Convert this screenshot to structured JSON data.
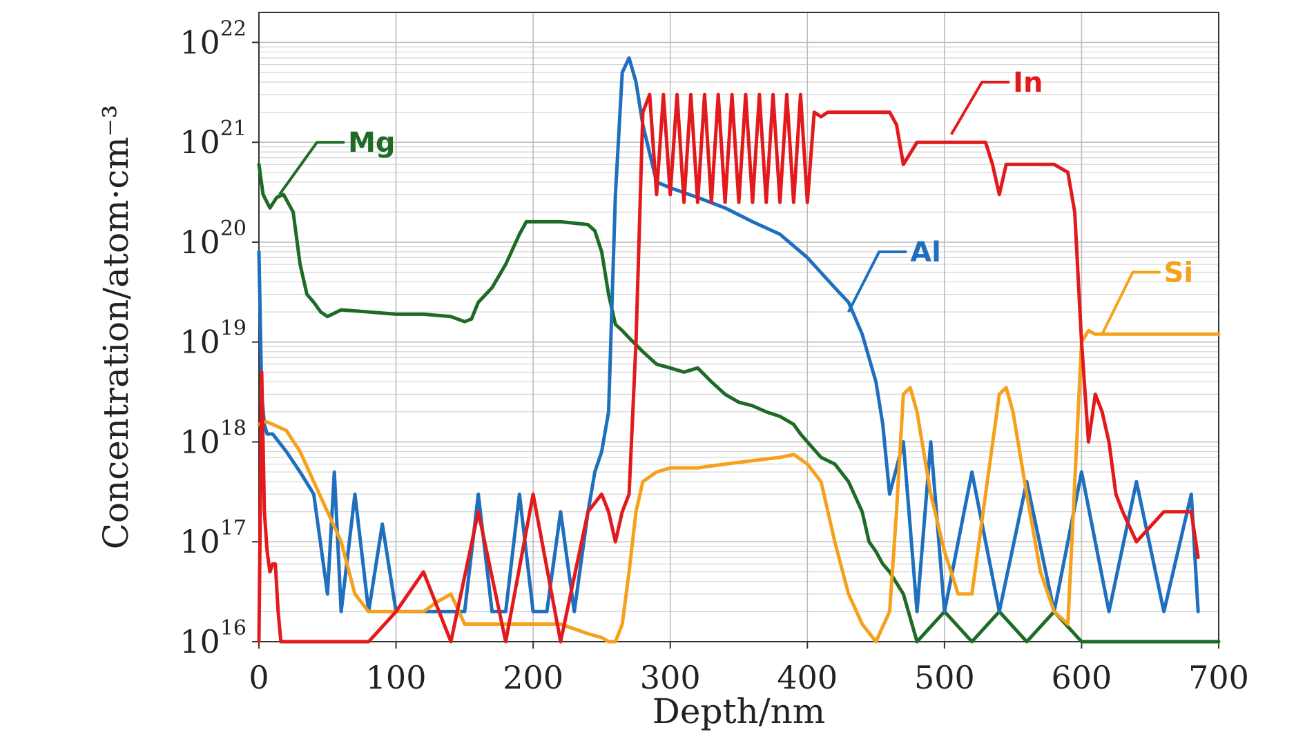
{
  "chart_data": {
    "type": "line",
    "xlabel": "Depth/nm",
    "ylabel": "Concentration/atom·cm⁻³",
    "xlim": [
      0,
      700
    ],
    "ylim": [
      1e+16,
      1e+22
    ],
    "y_scale": "log",
    "grid": true,
    "x_ticks": [
      "0",
      "100",
      "200",
      "300",
      "400",
      "500",
      "600",
      "700"
    ],
    "y_ticks": [
      {
        "base": "10",
        "exp": "16"
      },
      {
        "base": "10",
        "exp": "17"
      },
      {
        "base": "10",
        "exp": "18"
      },
      {
        "base": "10",
        "exp": "19"
      },
      {
        "base": "10",
        "exp": "20"
      },
      {
        "base": "10",
        "exp": "21"
      },
      {
        "base": "10",
        "exp": "22"
      }
    ],
    "series": [
      {
        "name": "Mg",
        "color": "#1e6b26",
        "label_anchor": [
          15,
          3e+20
        ],
        "label_pos": [
          65,
          1e+21
        ],
        "x": [
          0,
          3,
          8,
          13,
          18,
          25,
          30,
          35,
          40,
          45,
          50,
          60,
          80,
          100,
          120,
          140,
          150,
          155,
          160,
          170,
          180,
          190,
          195,
          200,
          220,
          240,
          245,
          250,
          255,
          260,
          265,
          270,
          280,
          290,
          300,
          310,
          320,
          330,
          340,
          350,
          360,
          370,
          380,
          390,
          395,
          400,
          410,
          420,
          430,
          440,
          445,
          450,
          455,
          460,
          470,
          480,
          500,
          520,
          540,
          560,
          580,
          600,
          620,
          640,
          660,
          680,
          700
        ],
        "y": [
          6e+20,
          3e+20,
          2.2e+20,
          2.8e+20,
          3e+20,
          2e+20,
          6e+19,
          3e+19,
          2.5e+19,
          2e+19,
          1.8e+19,
          2.1e+19,
          2e+19,
          1.9e+19,
          1.9e+19,
          1.8e+19,
          1.6e+19,
          1.7e+19,
          2.5e+19,
          3.5e+19,
          6e+19,
          1.2e+20,
          1.6e+20,
          1.6e+20,
          1.6e+20,
          1.5e+20,
          1.3e+20,
          8e+19,
          3e+19,
          1.5e+19,
          1.3e+19,
          1.1e+19,
          8e+18,
          6e+18,
          5.5e+18,
          5e+18,
          5.5e+18,
          4e+18,
          3e+18,
          2.5e+18,
          2.3e+18,
          2e+18,
          1.8e+18,
          1.5e+18,
          1.2e+18,
          1e+18,
          7e+17,
          6e+17,
          4e+17,
          2e+17,
          1e+17,
          8e+16,
          6e+16,
          5e+16,
          3e+16,
          1e+16,
          2e+16,
          1e+16,
          2e+16,
          1e+16,
          2e+16,
          1e+16,
          1e+16,
          1e+16,
          1e+16,
          1e+16,
          1e+16
        ]
      },
      {
        "name": "In",
        "color": "#e31a1c",
        "label_anchor": [
          505,
          1.2e+21
        ],
        "label_pos": [
          550,
          4e+21
        ],
        "x": [
          0,
          2,
          4,
          6,
          8,
          10,
          12,
          14,
          16,
          20,
          40,
          80,
          100,
          120,
          140,
          160,
          180,
          200,
          220,
          240,
          250,
          255,
          260,
          265,
          270,
          275,
          280,
          285,
          290,
          295,
          300,
          305,
          310,
          315,
          320,
          325,
          330,
          335,
          340,
          345,
          350,
          355,
          360,
          365,
          370,
          375,
          380,
          385,
          390,
          395,
          400,
          405,
          410,
          415,
          420,
          440,
          460,
          465,
          470,
          480,
          500,
          520,
          530,
          535,
          540,
          545,
          550,
          580,
          590,
          595,
          600,
          605,
          610,
          615,
          620,
          625,
          630,
          640,
          660,
          680,
          685
        ],
        "y": [
          1e+16,
          5e+18,
          2e+17,
          8e+16,
          5e+16,
          6e+16,
          6e+16,
          2e+16,
          1e+16,
          1e+16,
          1e+16,
          1e+16,
          2e+16,
          5e+16,
          1e+16,
          2e+17,
          1e+16,
          3e+17,
          1e+16,
          2e+17,
          3e+17,
          2e+17,
          1e+17,
          2e+17,
          3e+17,
          1e+19,
          2e+21,
          3e+21,
          3e+20,
          3e+21,
          3e+20,
          3e+21,
          2.5e+20,
          3e+21,
          2.5e+20,
          3e+21,
          2.5e+20,
          3e+21,
          2.5e+20,
          3e+21,
          2.5e+20,
          3e+21,
          2.5e+20,
          3e+21,
          2.5e+20,
          3e+21,
          2.5e+20,
          3e+21,
          2.5e+20,
          3e+21,
          2.5e+20,
          2e+21,
          1.8e+21,
          2e+21,
          2e+21,
          2e+21,
          2e+21,
          1.5e+21,
          6e+20,
          1e+21,
          1e+21,
          1e+21,
          1e+21,
          6e+20,
          3e+20,
          6e+20,
          6e+20,
          6e+20,
          5e+20,
          2e+20,
          1e+19,
          1e+18,
          3e+18,
          2e+18,
          1e+18,
          3e+17,
          2e+17,
          1e+17,
          2e+17,
          2e+17,
          7e+16
        ]
      },
      {
        "name": "Al",
        "color": "#1f6fbf",
        "label_anchor": [
          430,
          2e+19
        ],
        "label_pos": [
          475,
          8e+19
        ],
        "x": [
          0,
          2,
          4,
          6,
          10,
          20,
          30,
          40,
          50,
          55,
          60,
          70,
          80,
          90,
          100,
          110,
          120,
          130,
          140,
          150,
          160,
          170,
          180,
          190,
          200,
          210,
          220,
          230,
          240,
          245,
          250,
          255,
          260,
          265,
          270,
          275,
          280,
          290,
          300,
          320,
          340,
          360,
          380,
          400,
          420,
          430,
          440,
          450,
          455,
          460,
          470,
          480,
          490,
          500,
          520,
          540,
          560,
          580,
          600,
          620,
          640,
          660,
          680,
          685
        ],
        "y": [
          8e+19,
          3e+18,
          1.5e+18,
          1.2e+18,
          1.2e+18,
          8e+17,
          5e+17,
          3e+17,
          3e+16,
          5e+17,
          2e+16,
          3e+17,
          2e+16,
          1.5e+17,
          2e+16,
          2e+16,
          2e+16,
          2e+16,
          2e+16,
          2e+16,
          3e+17,
          2e+16,
          2e+16,
          3e+17,
          2e+16,
          2e+16,
          2e+17,
          2e+16,
          2e+17,
          5e+17,
          8e+17,
          2e+18,
          3e+20,
          5e+21,
          7e+21,
          4e+21,
          1.5e+21,
          4e+20,
          3.5e+20,
          2.8e+20,
          2.2e+20,
          1.6e+20,
          1.2e+20,
          7e+19,
          3.5e+19,
          2.5e+19,
          1.2e+19,
          4e+18,
          1.5e+18,
          3e+17,
          1e+18,
          2e+16,
          1e+18,
          2e+16,
          5e+17,
          2e+16,
          4e+17,
          2e+16,
          5e+17,
          2e+16,
          4e+17,
          2e+16,
          3e+17,
          2e+16
        ]
      },
      {
        "name": "Si",
        "color": "#f5a11b",
        "label_anchor": [
          615,
          1.2e+19
        ],
        "label_pos": [
          660,
          5e+19
        ],
        "x": [
          0,
          5,
          10,
          20,
          30,
          40,
          50,
          60,
          70,
          80,
          90,
          100,
          110,
          120,
          130,
          140,
          150,
          160,
          180,
          200,
          220,
          240,
          250,
          255,
          260,
          265,
          270,
          275,
          280,
          290,
          300,
          320,
          340,
          360,
          380,
          390,
          400,
          410,
          420,
          430,
          440,
          450,
          460,
          465,
          470,
          475,
          480,
          490,
          500,
          510,
          520,
          530,
          540,
          545,
          550,
          560,
          570,
          580,
          590,
          600,
          605,
          610,
          620,
          640,
          660,
          680,
          700
        ],
        "y": [
          1.5e+18,
          1.6e+18,
          1.5e+18,
          1.3e+18,
          8e+17,
          4e+17,
          2e+17,
          1e+17,
          3e+16,
          2e+16,
          2e+16,
          2e+16,
          2e+16,
          2e+16,
          2.5e+16,
          3e+16,
          1.5e+16,
          1.5e+16,
          1.5e+16,
          1.5e+16,
          1.5e+16,
          1.2e+16,
          1.1e+16,
          1e+16,
          1e+16,
          1.5e+16,
          5e+16,
          2e+17,
          4e+17,
          5e+17,
          5.5e+17,
          5.5e+17,
          6e+17,
          6.5e+17,
          7e+17,
          7.5e+17,
          6e+17,
          4e+17,
          1e+17,
          3e+16,
          1.5e+16,
          1e+16,
          2e+16,
          2e+17,
          3e+18,
          3.5e+18,
          2e+18,
          3e+17,
          8e+16,
          3e+16,
          3e+16,
          3e+17,
          3e+18,
          3.5e+18,
          2e+18,
          3e+17,
          5e+16,
          2e+16,
          1.5e+16,
          1e+19,
          1.3e+19,
          1.2e+19,
          1.2e+19,
          1.2e+19,
          1.2e+19,
          1.2e+19,
          1.2e+19
        ]
      }
    ]
  }
}
